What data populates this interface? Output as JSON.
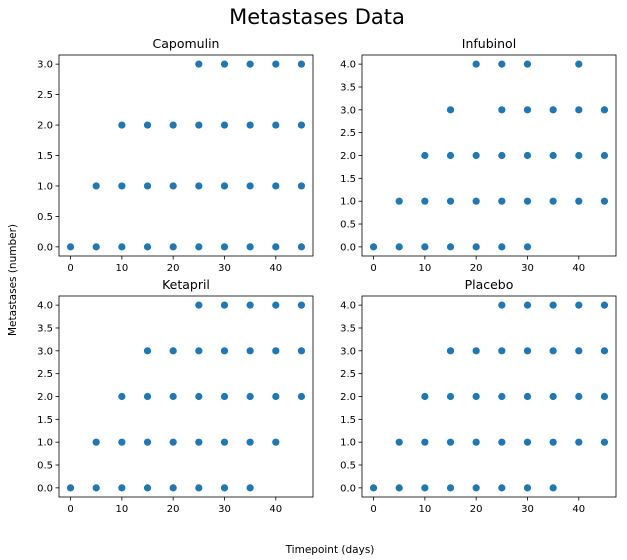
{
  "figure": {
    "title": "Metastases Data",
    "xlabel": "Timepoint (days)",
    "ylabel": "Metastases (number)",
    "marker_color": "#1f77b4"
  },
  "chart_data": [
    {
      "type": "scatter",
      "title": "Capomulin",
      "xlim": [
        -2.25,
        47.25
      ],
      "ylim": [
        -0.15,
        3.15
      ],
      "xticks": [
        0,
        10,
        20,
        30,
        40
      ],
      "yticks": [
        0.0,
        0.5,
        1.0,
        1.5,
        2.0,
        2.5,
        3.0
      ],
      "grid": false,
      "points": [
        [
          0,
          0
        ],
        [
          5,
          0
        ],
        [
          10,
          0
        ],
        [
          15,
          0
        ],
        [
          20,
          0
        ],
        [
          25,
          0
        ],
        [
          30,
          0
        ],
        [
          35,
          0
        ],
        [
          40,
          0
        ],
        [
          45,
          0
        ],
        [
          5,
          1
        ],
        [
          10,
          1
        ],
        [
          15,
          1
        ],
        [
          20,
          1
        ],
        [
          25,
          1
        ],
        [
          30,
          1
        ],
        [
          35,
          1
        ],
        [
          40,
          1
        ],
        [
          45,
          1
        ],
        [
          10,
          2
        ],
        [
          15,
          2
        ],
        [
          20,
          2
        ],
        [
          25,
          2
        ],
        [
          30,
          2
        ],
        [
          35,
          2
        ],
        [
          40,
          2
        ],
        [
          45,
          2
        ],
        [
          25,
          3
        ],
        [
          30,
          3
        ],
        [
          35,
          3
        ],
        [
          40,
          3
        ],
        [
          45,
          3
        ]
      ]
    },
    {
      "type": "scatter",
      "title": "Infubinol",
      "xlim": [
        -2.25,
        47.25
      ],
      "ylim": [
        -0.2,
        4.2
      ],
      "xticks": [
        0,
        10,
        20,
        30,
        40
      ],
      "yticks": [
        0.0,
        0.5,
        1.0,
        1.5,
        2.0,
        2.5,
        3.0,
        3.5,
        4.0
      ],
      "grid": false,
      "points": [
        [
          0,
          0
        ],
        [
          5,
          0
        ],
        [
          10,
          0
        ],
        [
          15,
          0
        ],
        [
          20,
          0
        ],
        [
          25,
          0
        ],
        [
          30,
          0
        ],
        [
          5,
          1
        ],
        [
          10,
          1
        ],
        [
          15,
          1
        ],
        [
          20,
          1
        ],
        [
          25,
          1
        ],
        [
          30,
          1
        ],
        [
          35,
          1
        ],
        [
          40,
          1
        ],
        [
          45,
          1
        ],
        [
          10,
          2
        ],
        [
          15,
          2
        ],
        [
          20,
          2
        ],
        [
          25,
          2
        ],
        [
          30,
          2
        ],
        [
          35,
          2
        ],
        [
          40,
          2
        ],
        [
          45,
          2
        ],
        [
          15,
          3
        ],
        [
          25,
          3
        ],
        [
          30,
          3
        ],
        [
          35,
          3
        ],
        [
          40,
          3
        ],
        [
          45,
          3
        ],
        [
          20,
          4
        ],
        [
          25,
          4
        ],
        [
          30,
          4
        ],
        [
          40,
          4
        ]
      ]
    },
    {
      "type": "scatter",
      "title": "Ketapril",
      "xlim": [
        -2.25,
        47.25
      ],
      "ylim": [
        -0.2,
        4.2
      ],
      "xticks": [
        0,
        10,
        20,
        30,
        40
      ],
      "yticks": [
        0.0,
        0.5,
        1.0,
        1.5,
        2.0,
        2.5,
        3.0,
        3.5,
        4.0
      ],
      "grid": false,
      "points": [
        [
          0,
          0
        ],
        [
          5,
          0
        ],
        [
          10,
          0
        ],
        [
          15,
          0
        ],
        [
          20,
          0
        ],
        [
          25,
          0
        ],
        [
          30,
          0
        ],
        [
          35,
          0
        ],
        [
          5,
          1
        ],
        [
          10,
          1
        ],
        [
          15,
          1
        ],
        [
          20,
          1
        ],
        [
          25,
          1
        ],
        [
          30,
          1
        ],
        [
          35,
          1
        ],
        [
          40,
          1
        ],
        [
          10,
          2
        ],
        [
          15,
          2
        ],
        [
          20,
          2
        ],
        [
          25,
          2
        ],
        [
          30,
          2
        ],
        [
          35,
          2
        ],
        [
          40,
          2
        ],
        [
          45,
          2
        ],
        [
          15,
          3
        ],
        [
          20,
          3
        ],
        [
          25,
          3
        ],
        [
          30,
          3
        ],
        [
          35,
          3
        ],
        [
          40,
          3
        ],
        [
          45,
          3
        ],
        [
          25,
          4
        ],
        [
          30,
          4
        ],
        [
          35,
          4
        ],
        [
          40,
          4
        ],
        [
          45,
          4
        ]
      ]
    },
    {
      "type": "scatter",
      "title": "Placebo",
      "xlim": [
        -2.25,
        47.25
      ],
      "ylim": [
        -0.2,
        4.2
      ],
      "xticks": [
        0,
        10,
        20,
        30,
        40
      ],
      "yticks": [
        0.0,
        0.5,
        1.0,
        1.5,
        2.0,
        2.5,
        3.0,
        3.5,
        4.0
      ],
      "grid": false,
      "points": [
        [
          0,
          0
        ],
        [
          5,
          0
        ],
        [
          10,
          0
        ],
        [
          15,
          0
        ],
        [
          20,
          0
        ],
        [
          25,
          0
        ],
        [
          30,
          0
        ],
        [
          35,
          0
        ],
        [
          5,
          1
        ],
        [
          10,
          1
        ],
        [
          15,
          1
        ],
        [
          20,
          1
        ],
        [
          25,
          1
        ],
        [
          30,
          1
        ],
        [
          35,
          1
        ],
        [
          40,
          1
        ],
        [
          45,
          1
        ],
        [
          10,
          2
        ],
        [
          15,
          2
        ],
        [
          20,
          2
        ],
        [
          25,
          2
        ],
        [
          30,
          2
        ],
        [
          35,
          2
        ],
        [
          40,
          2
        ],
        [
          45,
          2
        ],
        [
          15,
          3
        ],
        [
          20,
          3
        ],
        [
          25,
          3
        ],
        [
          30,
          3
        ],
        [
          35,
          3
        ],
        [
          40,
          3
        ],
        [
          45,
          3
        ],
        [
          25,
          4
        ],
        [
          30,
          4
        ],
        [
          35,
          4
        ],
        [
          40,
          4
        ],
        [
          45,
          4
        ]
      ]
    }
  ]
}
